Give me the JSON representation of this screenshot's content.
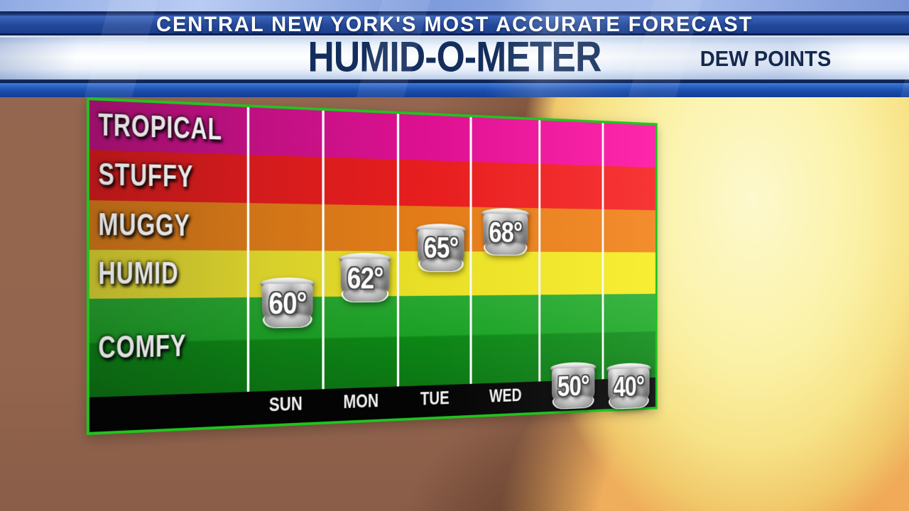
{
  "header": {
    "tagline": "CENTRAL NEW YORK'S MOST ACCURATE FORECAST",
    "title": "HUMID-O-METER",
    "subtitle": "DEW POINTS"
  },
  "chart_data": {
    "type": "scatter",
    "title": "HUMID-O-METER",
    "subtitle": "DEW POINTS",
    "categories": [
      "SUN",
      "MON",
      "TUE",
      "WED",
      "",
      ""
    ],
    "series": [
      {
        "name": "DEW POINTS",
        "values": [
          60,
          62,
          65,
          68,
          50,
          40
        ]
      }
    ],
    "point_labels": [
      "60°",
      "62°",
      "65°",
      "68°",
      "50°",
      "40°"
    ],
    "bands": [
      {
        "label": "TROPICAL",
        "color_left": "#b4127d",
        "color_right": "#ff0fa2"
      },
      {
        "label": "STUFFY",
        "color_left": "#d31b1d",
        "color_right": "#f71f1f"
      },
      {
        "label": "MUGGY",
        "color_left": "#d0771a",
        "color_right": "#f28016"
      },
      {
        "label": "HUMID",
        "color_left": "#d7cf33",
        "color_right": "#f7ec1d"
      },
      {
        "label": "COMFY",
        "color_left": "#11941a",
        "color_right": "#0da318"
      }
    ],
    "layout_hints": {
      "band_order": "highest dew point category on top",
      "x_axis_position": "bottom black strip",
      "gridlines": "vertical white day separators",
      "legend": "none"
    }
  },
  "colors": {
    "panel_border_green": "#1ec61e",
    "grid_line_white": "#f5f5f5",
    "axis_strip_black": "#040404",
    "header_navy_text": "#132e5c",
    "header_banner_blue": "#1c3f8c",
    "badge_metal_silver": "#b5b5b5",
    "badge_number_white": "#ffffff",
    "background_brown": "#93654e",
    "background_sun_yellow": "#fbf2a8"
  }
}
